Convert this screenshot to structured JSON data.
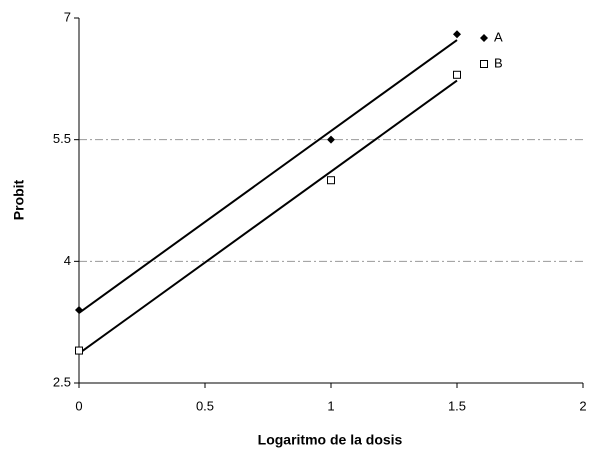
{
  "chart_data": {
    "type": "scatter",
    "x_label": "Logaritmo de la dosis",
    "y_label": "Probit",
    "xlim": [
      0,
      2
    ],
    "xticks": [
      0,
      0.5,
      1,
      1.5,
      2
    ],
    "ylim": [
      2.5,
      7
    ],
    "yticks": [
      2.5,
      4,
      5.5,
      7
    ],
    "grid": true,
    "trendline": "linear",
    "legend": "top-right",
    "series": [
      {
        "name": "A",
        "color": "#000000",
        "marker": "diamond",
        "x": [
          0,
          1,
          1.5
        ],
        "values": [
          3.4,
          5.5,
          6.8
        ]
      },
      {
        "name": "B",
        "color": "#000000",
        "marker": "open-square",
        "x": [
          0,
          1,
          1.5
        ],
        "values": [
          2.9,
          5.0,
          6.3
        ]
      }
    ]
  }
}
